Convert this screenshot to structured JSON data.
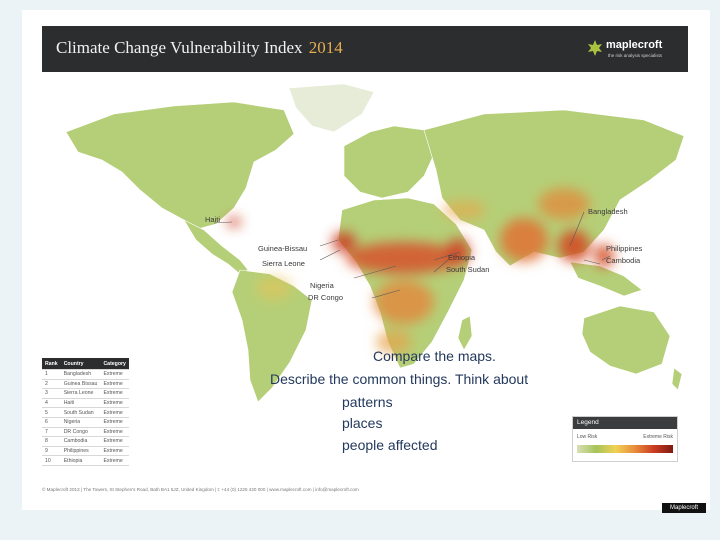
{
  "banner": {
    "title": "Climate Change Vulnerability Index",
    "year": "2014"
  },
  "logo": {
    "name": "maplecroft",
    "tagline": "the risk analysis specialists"
  },
  "map_labels": {
    "haiti": "Haiti",
    "guinea_bissau": "Guinea-Bissau",
    "sierra_leone": "Sierra Leone",
    "nigeria": "Nigeria",
    "dr_congo": "DR Congo",
    "ethiopia": "Ethiopia",
    "south_sudan": "South Sudan",
    "bangladesh": "Bangladesh",
    "philippines": "Philippines",
    "cambodia": "Cambodia"
  },
  "ranking": {
    "headers": [
      "Rank",
      "Country",
      "Category"
    ],
    "rows": [
      [
        "1",
        "Bangladesh",
        "Extreme"
      ],
      [
        "2",
        "Guinea Bissau",
        "Extreme"
      ],
      [
        "3",
        "Sierra Leone",
        "Extreme"
      ],
      [
        "4",
        "Haiti",
        "Extreme"
      ],
      [
        "5",
        "South Sudan",
        "Extreme"
      ],
      [
        "6",
        "Nigeria",
        "Extreme"
      ],
      [
        "7",
        "DR Congo",
        "Extreme"
      ],
      [
        "8",
        "Cambodia",
        "Extreme"
      ],
      [
        "9",
        "Philippines",
        "Extreme"
      ],
      [
        "10",
        "Ethiopia",
        "Extreme"
      ]
    ]
  },
  "question": {
    "line1": "Compare the maps.",
    "line2": "Describe the common things. Think about",
    "line3": "patterns",
    "line4": "places",
    "line5": "people affected"
  },
  "legend": {
    "title": "Legend",
    "low": "Low Risk",
    "high": "Extreme Risk"
  },
  "footer": "© Maplecroft 2013 | The Towers, St Stephen's Road, Bath BA1 5JZ, United Kingdom | t: +44 (0) 1225 420 000 | www.maplecroft.com | info@maplecroft.com",
  "watermark": "Maplecroft",
  "colors": {
    "banner": "#2b2d2f",
    "accent_year": "#e7ad52",
    "question_text": "#23395d",
    "low_risk": "#a6c35a",
    "high_risk": "#cc3d22"
  }
}
